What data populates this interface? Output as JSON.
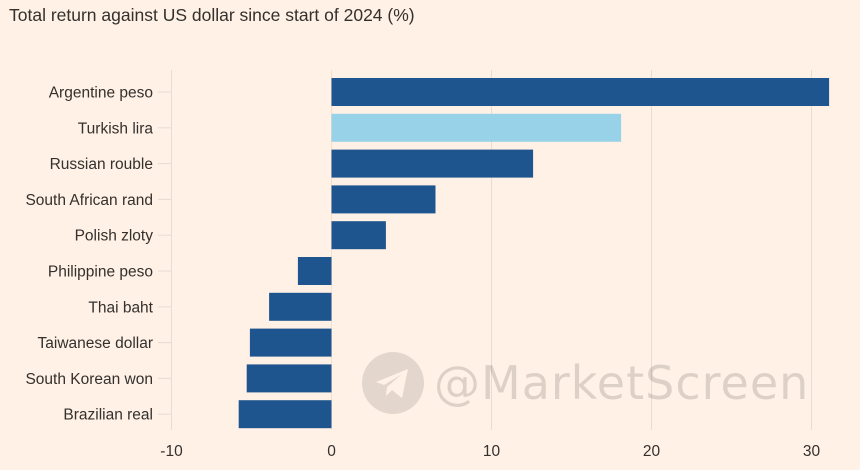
{
  "chart_data": {
    "type": "bar",
    "orientation": "horizontal",
    "title": "Total return against US dollar since start of 2024 (%)",
    "categories": [
      "Argentine peso",
      "Turkish lira",
      "Russian rouble",
      "South African rand",
      "Polish zloty",
      "Philippine peso",
      "Thai baht",
      "Taiwanese dollar",
      "South Korean won",
      "Brazilian real"
    ],
    "values": [
      31.1,
      18.1,
      12.6,
      6.5,
      3.4,
      -2.1,
      -3.9,
      -5.1,
      -5.3,
      -5.8
    ],
    "highlight": "Turkish lira",
    "xlim": [
      -10,
      32
    ],
    "xticks": [
      -10,
      0,
      10,
      20,
      30
    ],
    "xlabel": "",
    "ylabel": "",
    "grid": true
  },
  "colors": {
    "background": "#fff1e5",
    "bar": "#1f558e",
    "highlight": "#97d2e9",
    "grid": "#e8dcd2",
    "zero_line": "#f2dfce"
  },
  "watermark": {
    "icon": "telegram-icon",
    "text": "@MarketScreen"
  }
}
